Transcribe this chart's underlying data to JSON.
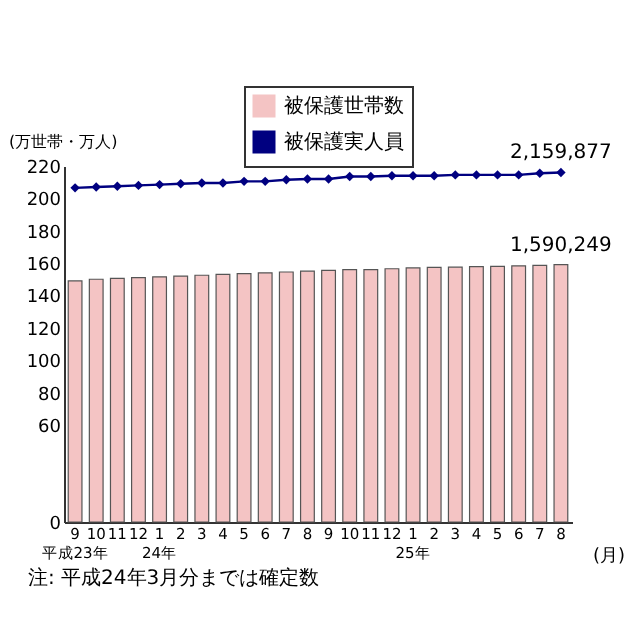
{
  "chart_data": {
    "type": "bar",
    "ylabel": "(万世帯・万人)",
    "xlabel": "(月)",
    "categories": [
      "9\n平成23年",
      "10",
      "11",
      "12",
      "1\n24年",
      "2",
      "3",
      "4",
      "5",
      "6",
      "7",
      "8",
      "9",
      "10",
      "11",
      "12",
      "1\n25年",
      "2",
      "3",
      "4",
      "5",
      "6",
      "7",
      "8"
    ],
    "series": [
      {
        "name": "被保護世帯数",
        "color": "#f4c4c4",
        "values": [
          149,
          150,
          150.5,
          151,
          151.5,
          152,
          152.5,
          153,
          153.5,
          154,
          154.5,
          155,
          155.5,
          156,
          156,
          156.5,
          157,
          157.3,
          157.5,
          157.8,
          158,
          158.3,
          158.6,
          159.0249
        ]
      },
      {
        "name": "被保護実人員",
        "type": "line",
        "color": "#000080",
        "marker": "diamond",
        "values": [
          206.5,
          207,
          207.5,
          208,
          208.5,
          209,
          209.5,
          209.5,
          210.5,
          210.5,
          211.5,
          212,
          212,
          213.5,
          213.5,
          214,
          214,
          214,
          214.5,
          214.5,
          214.5,
          214.5,
          215.5,
          215.9877
        ]
      }
    ],
    "ylim": [
      0,
      220
    ],
    "yticks": [
      0,
      60,
      80,
      100,
      120,
      140,
      160,
      180,
      200,
      220
    ],
    "legend": "top",
    "annotations": [
      "注: 平成24年3月分までは確定数",
      "1,590,249",
      "2,159,877"
    ]
  }
}
